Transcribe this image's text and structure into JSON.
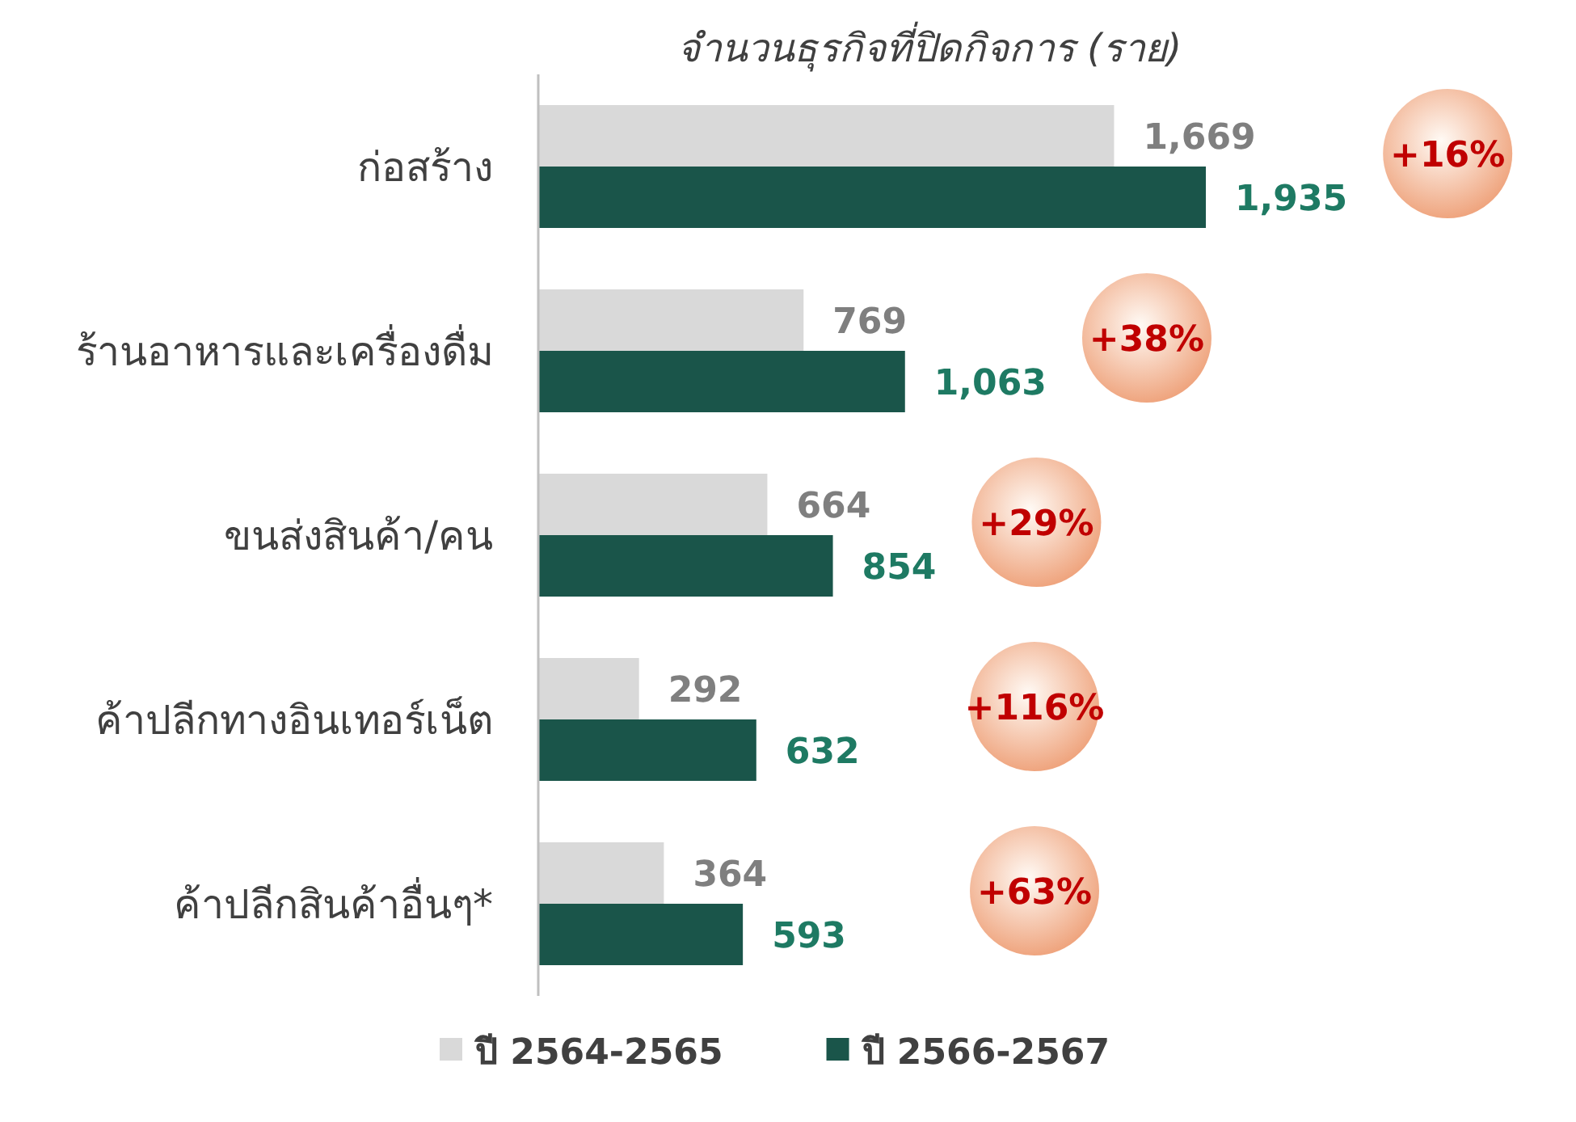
{
  "chart_data": {
    "type": "bar",
    "orientation": "horizontal",
    "title": "จำนวนธุรกิจที่ปิดกิจการ (ราย)",
    "categories": [
      "ก่อสร้าง",
      "ร้านอาหารและเครื่องดื่ม",
      "ขนส่งสินค้า/คน",
      "ค้าปลีกทางอินเทอร์เน็ต",
      "ค้าปลีกสินค้าอื่นๆ*"
    ],
    "series": [
      {
        "name": "ปี 2564-2565",
        "color": "#d9d9d9",
        "values": [
          1669,
          769,
          664,
          292,
          364
        ],
        "value_labels": [
          "1,669",
          "769",
          "664",
          "292",
          "364"
        ]
      },
      {
        "name": "ปี 2566-2567",
        "color": "#1a554a",
        "values": [
          1935,
          1063,
          854,
          632,
          593
        ],
        "value_labels": [
          "1,935",
          "1,063",
          "854",
          "632",
          "593"
        ]
      }
    ],
    "legend": "bottom",
    "annotations": [
      "+16%",
      "+38%",
      "+29%",
      "+116%",
      "+63%"
    ]
  }
}
